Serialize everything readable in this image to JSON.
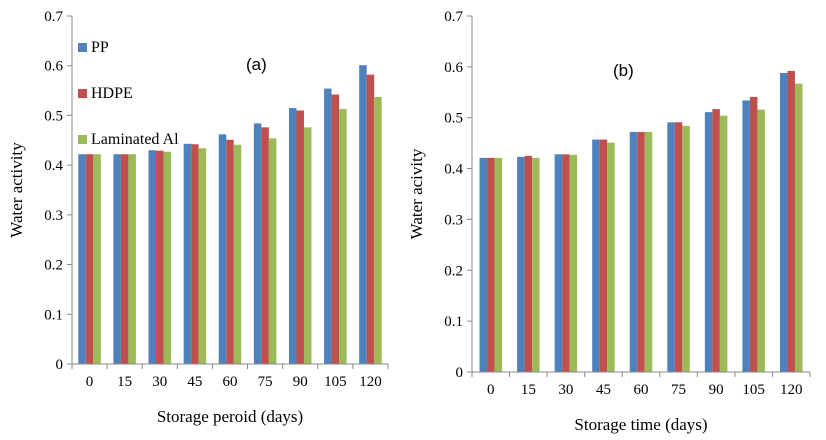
{
  "chart_data": [
    {
      "type": "bar",
      "panel_label": "(a)",
      "xlabel": "Storage peroid (days)",
      "ylabel": "Water activity",
      "ylim": [
        0,
        0.7
      ],
      "yticks": [
        "0",
        "0.1",
        "0.2",
        "0.3",
        "0.4",
        "0.5",
        "0.6",
        "0.7"
      ],
      "categories": [
        "0",
        "15",
        "30",
        "45",
        "60",
        "75",
        "90",
        "105",
        "120"
      ],
      "grid": false,
      "legend_position": "top-left",
      "series": [
        {
          "name": "PP",
          "color": "#4F81BD",
          "values": [
            0.422,
            0.422,
            0.43,
            0.443,
            0.462,
            0.484,
            0.515,
            0.554,
            0.601
          ]
        },
        {
          "name": "HDPE",
          "color": "#C0504D",
          "values": [
            0.422,
            0.422,
            0.429,
            0.442,
            0.451,
            0.476,
            0.51,
            0.542,
            0.582
          ]
        },
        {
          "name": "Laminated Al",
          "color": "#9BBB59",
          "values": [
            0.422,
            0.422,
            0.427,
            0.434,
            0.441,
            0.454,
            0.476,
            0.513,
            0.537
          ]
        }
      ]
    },
    {
      "type": "bar",
      "panel_label": "(b)",
      "xlabel": "Storage time (days)",
      "ylabel": "Water acivity",
      "ylim": [
        0,
        0.7
      ],
      "yticks": [
        "0",
        "0.1",
        "0.2",
        "0.3",
        "0.4",
        "0.5",
        "0.6",
        "0.7"
      ],
      "categories": [
        "0",
        "15",
        "30",
        "45",
        "60",
        "75",
        "90",
        "105",
        "120"
      ],
      "grid": false,
      "series": [
        {
          "color": "#4F81BD",
          "values": [
            0.421,
            0.423,
            0.428,
            0.457,
            0.472,
            0.491,
            0.511,
            0.534,
            0.588
          ]
        },
        {
          "color": "#C0504D",
          "values": [
            0.421,
            0.425,
            0.428,
            0.457,
            0.472,
            0.491,
            0.517,
            0.541,
            0.592
          ]
        },
        {
          "color": "#9BBB59",
          "values": [
            0.421,
            0.421,
            0.427,
            0.451,
            0.472,
            0.484,
            0.504,
            0.516,
            0.567
          ]
        }
      ]
    }
  ]
}
